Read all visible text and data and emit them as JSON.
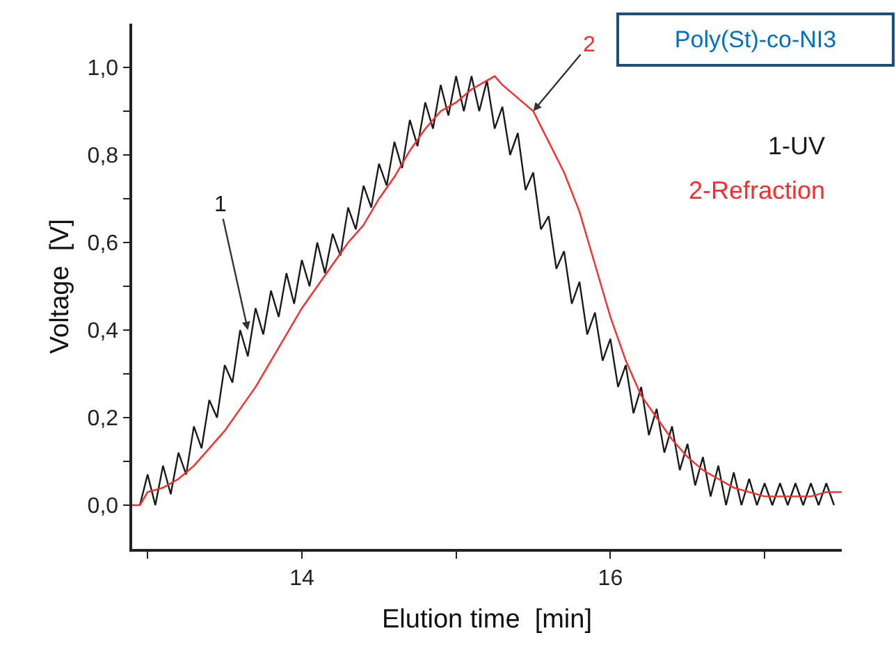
{
  "chart_data": {
    "type": "line",
    "title": "Poly(St)-co-NI3",
    "xlabel": "Elution time  [min]",
    "ylabel": "Voltage  [V]",
    "xlim": [
      12.9,
      17.5
    ],
    "xticks": [
      {
        "value": 13,
        "label": null
      },
      14,
      {
        "value": 15,
        "label": null
      },
      16,
      {
        "value": 17,
        "label": null
      }
    ],
    "ylim": [
      -0.1,
      1.1
    ],
    "yticks": [
      {
        "value": 0,
        "label": "0,0"
      },
      {
        "value": 0.1,
        "label": null
      },
      {
        "value": 0.2,
        "label": "0,2"
      },
      {
        "value": 0.3,
        "label": null
      },
      {
        "value": 0.4,
        "label": "0,4"
      },
      {
        "value": 0.5,
        "label": null
      },
      {
        "value": 0.6,
        "label": "0,6"
      },
      {
        "value": 0.7,
        "label": null
      },
      {
        "value": 0.8,
        "label": "0,8"
      },
      {
        "value": 0.9,
        "label": null
      },
      {
        "value": 1.0,
        "label": "1,0"
      }
    ],
    "legend": "top right",
    "marker": "none",
    "line_style": "solid",
    "annotations": [
      {
        "text": "1",
        "x": 13.65,
        "y": 0.4
      },
      {
        "text": "2",
        "x": 15.5,
        "y": 0.9
      }
    ],
    "series": [
      {
        "name": "1-UV",
        "color": "#1a1a1a",
        "x": [
          12.95,
          13.0,
          13.05,
          13.1,
          13.15,
          13.2,
          13.25,
          13.3,
          13.35,
          13.4,
          13.45,
          13.5,
          13.55,
          13.6,
          13.65,
          13.7,
          13.75,
          13.8,
          13.85,
          13.9,
          13.95,
          14.0,
          14.05,
          14.1,
          14.15,
          14.2,
          14.25,
          14.3,
          14.35,
          14.4,
          14.45,
          14.5,
          14.55,
          14.6,
          14.65,
          14.7,
          14.75,
          14.8,
          14.85,
          14.9,
          14.95,
          15.0,
          15.05,
          15.1,
          15.15,
          15.2,
          15.25,
          15.3,
          15.35,
          15.4,
          15.45,
          15.5,
          15.55,
          15.6,
          15.65,
          15.7,
          15.75,
          15.8,
          15.85,
          15.9,
          15.95,
          16.0,
          16.05,
          16.1,
          16.15,
          16.2,
          16.25,
          16.3,
          16.35,
          16.4,
          16.45,
          16.5,
          16.55,
          16.6,
          16.65,
          16.7,
          16.75,
          16.8,
          16.85,
          16.9,
          16.95,
          17.0,
          17.05,
          17.1,
          17.15,
          17.2,
          17.25,
          17.3,
          17.35,
          17.4,
          17.45
        ],
        "values": [
          0.0,
          0.07,
          0.0,
          0.09,
          0.025,
          0.12,
          0.07,
          0.18,
          0.13,
          0.24,
          0.2,
          0.32,
          0.28,
          0.4,
          0.34,
          0.45,
          0.39,
          0.49,
          0.43,
          0.53,
          0.46,
          0.56,
          0.5,
          0.6,
          0.53,
          0.62,
          0.57,
          0.68,
          0.63,
          0.73,
          0.68,
          0.78,
          0.73,
          0.83,
          0.77,
          0.88,
          0.82,
          0.92,
          0.86,
          0.96,
          0.89,
          0.98,
          0.9,
          0.98,
          0.9,
          0.97,
          0.86,
          0.91,
          0.8,
          0.85,
          0.72,
          0.76,
          0.63,
          0.66,
          0.54,
          0.58,
          0.46,
          0.51,
          0.39,
          0.44,
          0.33,
          0.38,
          0.27,
          0.32,
          0.21,
          0.27,
          0.16,
          0.22,
          0.12,
          0.18,
          0.08,
          0.14,
          0.045,
          0.11,
          0.02,
          0.09,
          0.0,
          0.075,
          0.0,
          0.06,
          0.0,
          0.05,
          0.0,
          0.05,
          0.0,
          0.05,
          0.0,
          0.05,
          0.0,
          0.05,
          0.0
        ]
      },
      {
        "name": "2-Refraction",
        "color": "#ff2a2a",
        "x": [
          12.9,
          12.95,
          13.0,
          13.1,
          13.2,
          13.3,
          13.4,
          13.5,
          13.6,
          13.7,
          13.8,
          13.9,
          14.0,
          14.1,
          14.2,
          14.3,
          14.4,
          14.5,
          14.6,
          14.7,
          14.8,
          14.9,
          15.0,
          15.1,
          15.2,
          15.25,
          15.3,
          15.4,
          15.5,
          15.6,
          15.7,
          15.8,
          15.9,
          16.0,
          16.1,
          16.2,
          16.3,
          16.4,
          16.5,
          16.6,
          16.7,
          16.8,
          16.9,
          17.0,
          17.1,
          17.2,
          17.3,
          17.4,
          17.5
        ],
        "values": [
          0.0,
          0.0,
          0.03,
          0.04,
          0.06,
          0.09,
          0.13,
          0.17,
          0.22,
          0.27,
          0.33,
          0.39,
          0.45,
          0.5,
          0.55,
          0.6,
          0.64,
          0.7,
          0.75,
          0.81,
          0.86,
          0.9,
          0.92,
          0.95,
          0.97,
          0.98,
          0.96,
          0.93,
          0.9,
          0.83,
          0.76,
          0.67,
          0.55,
          0.43,
          0.33,
          0.25,
          0.2,
          0.15,
          0.11,
          0.08,
          0.06,
          0.04,
          0.03,
          0.02,
          0.02,
          0.02,
          0.02,
          0.03,
          0.03
        ]
      }
    ]
  }
}
